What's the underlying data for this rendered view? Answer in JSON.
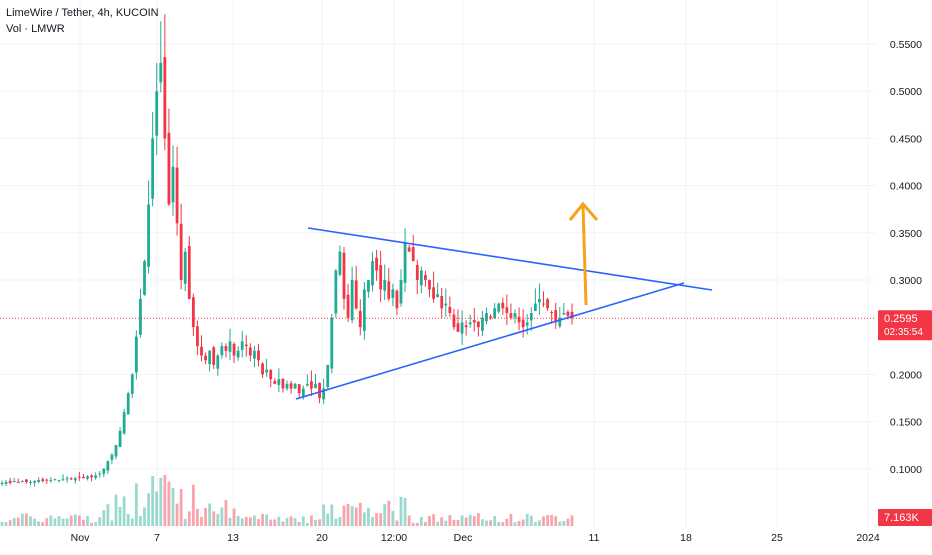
{
  "header": {
    "title": "LimeWire / Tether, 4h, KUCOIN",
    "volume_label": "Vol · LMWR"
  },
  "price_axis": {
    "ticks": [
      "0.5500",
      "0.5000",
      "0.4500",
      "0.4000",
      "0.3500",
      "0.3000",
      "0.2000",
      "0.1500",
      "0.1000"
    ]
  },
  "time_axis": {
    "ticks": [
      "Nov",
      "7",
      "13",
      "20",
      "12:00",
      "Dec",
      "11",
      "18",
      "25",
      "2024"
    ]
  },
  "current_price": {
    "price": "0.2595",
    "countdown": "02:35:54",
    "color": "#f23645"
  },
  "volume_badge": {
    "value": "7.163K",
    "color": "#f23645"
  },
  "colors": {
    "up": "#22ab94",
    "down": "#f23645",
    "trendline": "#2962ff",
    "arrow": "#f7a21b",
    "grid": "#f0f3fa"
  },
  "chart_data": {
    "type": "candlestick",
    "symbol": "LimeWire / Tether",
    "interval": "4h",
    "exchange": "KUCOIN",
    "y_range": [
      0.06,
      0.575
    ],
    "x_ticks": [
      "Nov",
      "7",
      "13",
      "20",
      "12:00",
      "Dec",
      "11",
      "18",
      "25",
      "2024"
    ],
    "price_series_close": [
      0.085,
      0.086,
      0.085,
      0.087,
      0.086,
      0.087,
      0.086,
      0.086,
      0.087,
      0.088,
      0.087,
      0.088,
      0.088,
      0.089,
      0.088,
      0.089,
      0.09,
      0.089,
      0.09,
      0.091,
      0.09,
      0.092,
      0.091,
      0.093,
      0.095,
      0.1,
      0.108,
      0.115,
      0.125,
      0.14,
      0.16,
      0.18,
      0.2,
      0.24,
      0.28,
      0.32,
      0.38,
      0.45,
      0.5,
      0.53,
      0.45,
      0.38,
      0.42,
      0.36,
      0.3,
      0.33,
      0.28,
      0.25,
      0.23,
      0.22,
      0.215,
      0.225,
      0.21,
      0.22,
      0.23,
      0.225,
      0.235,
      0.22,
      0.225,
      0.235,
      0.23,
      0.22,
      0.225,
      0.215,
      0.2,
      0.205,
      0.195,
      0.19,
      0.195,
      0.185,
      0.19,
      0.185,
      0.19,
      0.18,
      0.185,
      0.19,
      0.185,
      0.19,
      0.175,
      0.185,
      0.21,
      0.26,
      0.31,
      0.33,
      0.28,
      0.26,
      0.3,
      0.27,
      0.25,
      0.29,
      0.3,
      0.32,
      0.31,
      0.29,
      0.3,
      0.28,
      0.29,
      0.27,
      0.3,
      0.34,
      0.33,
      0.32,
      0.3,
      0.31,
      0.3,
      0.29,
      0.28,
      0.285,
      0.27,
      0.275,
      0.265,
      0.25,
      0.245,
      0.255,
      0.25,
      0.255,
      0.255,
      0.25,
      0.26,
      0.265,
      0.26,
      0.27,
      0.275,
      0.27,
      0.265,
      0.26,
      0.265,
      0.255,
      0.25,
      0.255,
      0.265,
      0.275,
      0.28,
      0.275,
      0.27,
      0.265,
      0.255,
      0.26,
      0.265,
      0.262,
      0.2595
    ],
    "trendlines": [
      {
        "name": "upper",
        "from": [
          0.352
        ],
        "to": [
          0.286
        ]
      },
      {
        "name": "lower",
        "from": [
          0.17
        ],
        "to": [
          0.295
        ]
      }
    ],
    "annotations": [
      {
        "type": "arrow",
        "direction": "up",
        "color": "#f7a21b"
      }
    ],
    "last_price": 0.2595,
    "last_volume": "7.163K"
  }
}
